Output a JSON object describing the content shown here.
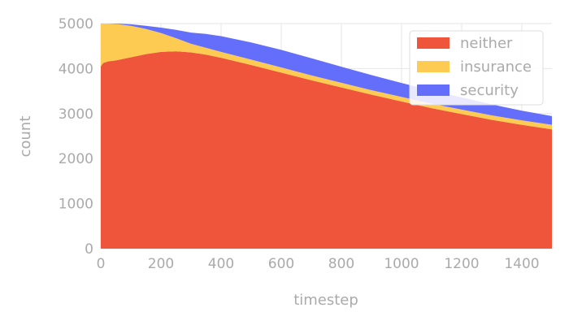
{
  "chart_data": {
    "type": "area",
    "stacked": true,
    "xlabel": "timestep",
    "ylabel": "count",
    "xlim": [
      0,
      1500
    ],
    "ylim": [
      0,
      5000
    ],
    "xticks": [
      0,
      200,
      400,
      600,
      800,
      1000,
      1200,
      1400
    ],
    "yticks": [
      0,
      1000,
      2000,
      3000,
      4000,
      5000
    ],
    "grid": true,
    "legend_position": "top-right",
    "x": [
      0,
      5,
      10,
      25,
      50,
      100,
      150,
      200,
      250,
      300,
      350,
      400,
      500,
      600,
      700,
      800,
      900,
      1000,
      1100,
      1200,
      1300,
      1400,
      1500
    ],
    "series": [
      {
        "name": "neither",
        "color": "#ef553b",
        "values": [
          4050,
          4100,
          4130,
          4160,
          4180,
          4250,
          4320,
          4370,
          4385,
          4360,
          4310,
          4240,
          4080,
          3910,
          3740,
          3580,
          3420,
          3270,
          3120,
          2990,
          2860,
          2750,
          2650
        ]
      },
      {
        "name": "insurance",
        "color": "#fecb52",
        "values": [
          950,
          900,
          870,
          840,
          810,
          700,
          560,
          420,
          290,
          190,
          150,
          130,
          120,
          115,
          110,
          105,
          100,
          100,
          100,
          100,
          100,
          100,
          100
        ]
      },
      {
        "name": "security",
        "color": "#636efa",
        "values": [
          0,
          0,
          0,
          0,
          10,
          35,
          70,
          120,
          185,
          250,
          310,
          350,
          380,
          390,
          380,
          355,
          335,
          310,
          295,
          270,
          245,
          215,
          195
        ]
      }
    ]
  }
}
